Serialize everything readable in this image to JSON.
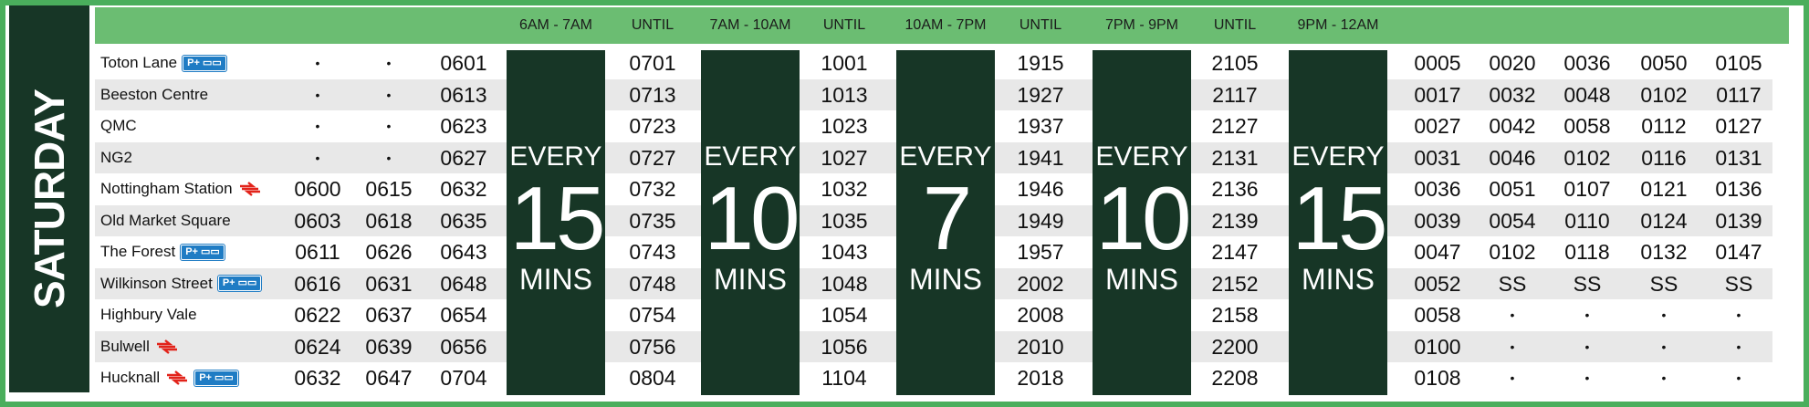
{
  "day": "SATURDAY",
  "headers": [
    {
      "key": "h1",
      "label": "6AM - 7AM",
      "col": "b1"
    },
    {
      "key": "h2",
      "label": "UNTIL",
      "col": "u1"
    },
    {
      "key": "h3",
      "label": "7AM - 10AM",
      "col": "b2"
    },
    {
      "key": "h4",
      "label": "UNTIL",
      "col": "u2"
    },
    {
      "key": "h5",
      "label": "10AM - 7PM",
      "col": "b3"
    },
    {
      "key": "h6",
      "label": "UNTIL",
      "col": "u3"
    },
    {
      "key": "h7",
      "label": "7PM - 9PM",
      "col": "b4"
    },
    {
      "key": "h8",
      "label": "UNTIL",
      "col": "u4"
    },
    {
      "key": "h9",
      "label": "9PM - 12AM",
      "col": "b5"
    }
  ],
  "frequency_bands": [
    {
      "every": "EVERY",
      "number": "15",
      "mins": "MINS"
    },
    {
      "every": "EVERY",
      "number": "10",
      "mins": "MINS"
    },
    {
      "every": "EVERY",
      "number": "7",
      "mins": "MINS"
    },
    {
      "every": "EVERY",
      "number": "10",
      "mins": "MINS"
    },
    {
      "every": "EVERY",
      "number": "15",
      "mins": "MINS"
    }
  ],
  "park_ride_label": "P+",
  "stops": [
    {
      "name": "Toton Lane",
      "rail": false,
      "park_ride": true,
      "early": [
        "•",
        "•",
        "0601"
      ],
      "until": [
        "0701",
        "1001",
        "1915",
        "2105"
      ],
      "late": [
        "0005",
        "0020",
        "0036",
        "0050",
        "0105"
      ]
    },
    {
      "name": "Beeston Centre",
      "rail": false,
      "park_ride": false,
      "early": [
        "•",
        "•",
        "0613"
      ],
      "until": [
        "0713",
        "1013",
        "1927",
        "2117"
      ],
      "late": [
        "0017",
        "0032",
        "0048",
        "0102",
        "0117"
      ]
    },
    {
      "name": "QMC",
      "rail": false,
      "park_ride": false,
      "early": [
        "•",
        "•",
        "0623"
      ],
      "until": [
        "0723",
        "1023",
        "1937",
        "2127"
      ],
      "late": [
        "0027",
        "0042",
        "0058",
        "0112",
        "0127"
      ]
    },
    {
      "name": "NG2",
      "rail": false,
      "park_ride": false,
      "early": [
        "•",
        "•",
        "0627"
      ],
      "until": [
        "0727",
        "1027",
        "1941",
        "2131"
      ],
      "late": [
        "0031",
        "0046",
        "0102",
        "0116",
        "0131"
      ]
    },
    {
      "name": "Nottingham Station",
      "rail": true,
      "park_ride": false,
      "early": [
        "0600",
        "0615",
        "0632"
      ],
      "until": [
        "0732",
        "1032",
        "1946",
        "2136"
      ],
      "late": [
        "0036",
        "0051",
        "0107",
        "0121",
        "0136"
      ]
    },
    {
      "name": "Old Market Square",
      "rail": false,
      "park_ride": false,
      "early": [
        "0603",
        "0618",
        "0635"
      ],
      "until": [
        "0735",
        "1035",
        "1949",
        "2139"
      ],
      "late": [
        "0039",
        "0054",
        "0110",
        "0124",
        "0139"
      ]
    },
    {
      "name": "The Forest",
      "rail": false,
      "park_ride": true,
      "early": [
        "0611",
        "0626",
        "0643"
      ],
      "until": [
        "0743",
        "1043",
        "1957",
        "2147"
      ],
      "late": [
        "0047",
        "0102",
        "0118",
        "0132",
        "0147"
      ]
    },
    {
      "name": "Wilkinson Street",
      "rail": false,
      "park_ride": true,
      "early": [
        "0616",
        "0631",
        "0648"
      ],
      "until": [
        "0748",
        "1048",
        "2002",
        "2152"
      ],
      "late": [
        "0052",
        "SS",
        "SS",
        "SS",
        "SS"
      ]
    },
    {
      "name": "Highbury Vale",
      "rail": false,
      "park_ride": false,
      "early": [
        "0622",
        "0637",
        "0654"
      ],
      "until": [
        "0754",
        "1054",
        "2008",
        "2158"
      ],
      "late": [
        "0058",
        "•",
        "•",
        "•",
        "•"
      ]
    },
    {
      "name": "Bulwell",
      "rail": true,
      "park_ride": false,
      "early": [
        "0624",
        "0639",
        "0656"
      ],
      "until": [
        "0756",
        "1056",
        "2010",
        "2200"
      ],
      "late": [
        "0100",
        "•",
        "•",
        "•",
        "•"
      ]
    },
    {
      "name": "Hucknall",
      "rail": true,
      "park_ride": true,
      "early": [
        "0632",
        "0647",
        "0704"
      ],
      "until": [
        "0804",
        "1104",
        "2018",
        "2208"
      ],
      "late": [
        "0108",
        "•",
        "•",
        "•",
        "•"
      ]
    }
  ],
  "colors": {
    "outer_green": "#4aae5c",
    "header_green": "#6bbd72",
    "dark_green": "#173626",
    "row_alt": "#e8e8e8",
    "park_ride_blue": "#1f7cc4",
    "rail_red": "#e2231a"
  }
}
